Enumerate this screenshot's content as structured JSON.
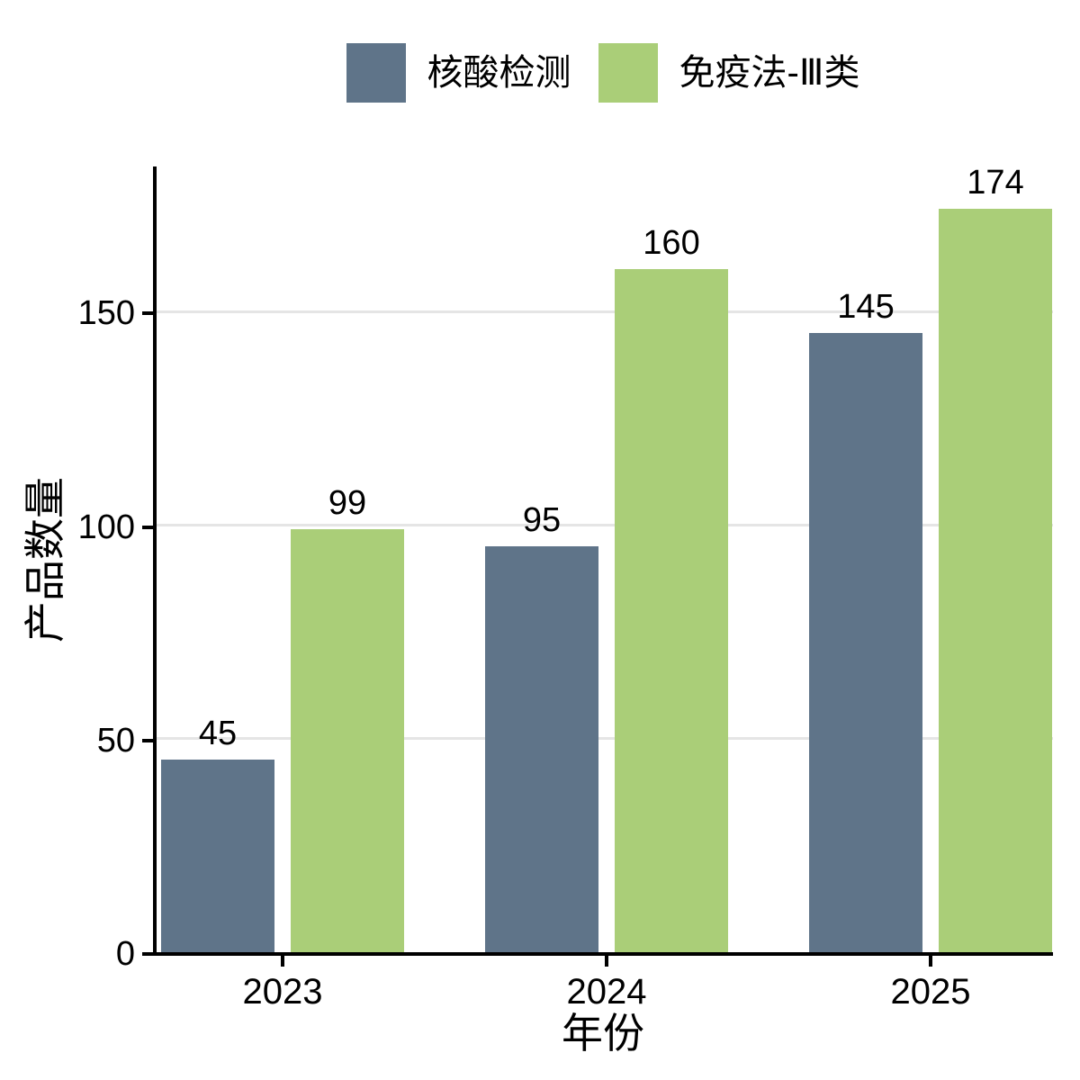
{
  "chart_data": {
    "type": "bar",
    "title": "",
    "xlabel": "年份",
    "ylabel": "产品数量",
    "categories": [
      "2023",
      "2024",
      "2025"
    ],
    "series": [
      {
        "name": "核酸检测",
        "color": "#5f7489",
        "values": [
          45,
          95,
          145
        ]
      },
      {
        "name": "免疫法-Ⅲ类",
        "color": "#aace78",
        "values": [
          99,
          160,
          174
        ]
      }
    ],
    "y_ticks": [
      0,
      50,
      100,
      150
    ],
    "ylim": [
      0,
      184
    ],
    "grid": "horizontal",
    "legend_position": "top",
    "bar_value_labels_shown": true,
    "axis_color": "#000000",
    "grid_color": "#e5e5e5",
    "text_color": "#000000",
    "background_color": "#ffffff"
  }
}
